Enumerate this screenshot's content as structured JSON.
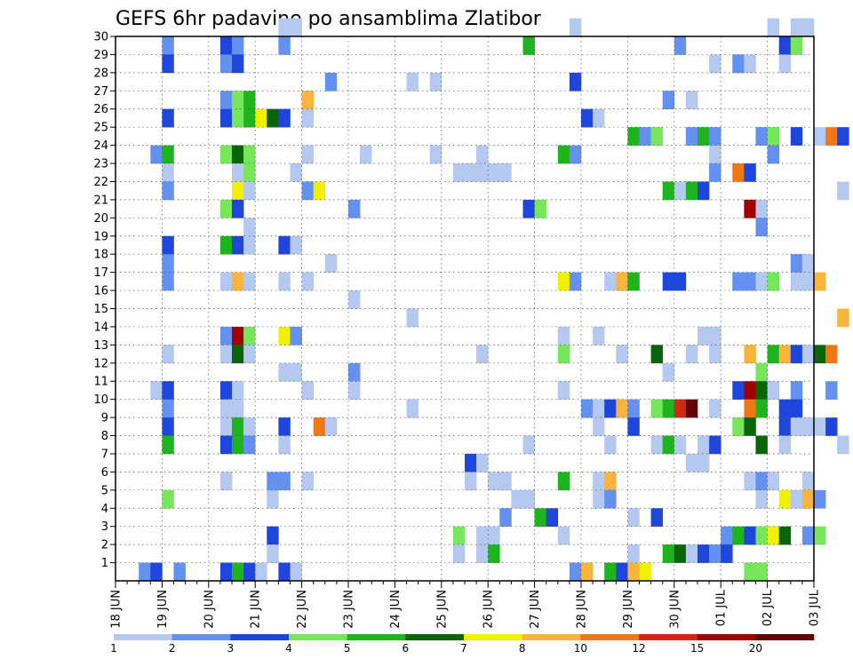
{
  "chart_data": {
    "type": "heatmap",
    "title": "GEFS 6hr padavine po ansamblima Zlatibor",
    "xlabel": "",
    "ylabel": "",
    "x_labels": [
      "18 JUN",
      "19 JUN",
      "20 JUN",
      "21 JUN",
      "22 JUN",
      "23 JUN",
      "24 JUN",
      "25 JUN",
      "26 JUN",
      "27 JUN",
      "28 JUN",
      "29 JUN",
      "30 JUN",
      "01 JUL",
      "02 JUL",
      "03 JUL"
    ],
    "y_labels": [
      "1",
      "2",
      "3",
      "4",
      "5",
      "6",
      "7",
      "8",
      "9",
      "10",
      "11",
      "12",
      "13",
      "14",
      "15",
      "16",
      "17",
      "18",
      "19",
      "20",
      "21",
      "22",
      "23",
      "24",
      "25",
      "26",
      "27",
      "28",
      "29",
      "30"
    ],
    "y_range": [
      0,
      30
    ],
    "steps_per_day": 4,
    "grid": true,
    "legend": {
      "position": "bottom",
      "labels": [
        "1",
        "2",
        "3",
        "4",
        "5",
        "6",
        "7",
        "8",
        "10",
        "12",
        "15",
        "20"
      ],
      "colors": [
        "#b4c8f0",
        "#6490f0",
        "#1e46dc",
        "#78e65a",
        "#1eb41e",
        "#0a640a",
        "#f0f000",
        "#fab43c",
        "#f07814",
        "#d22814",
        "#a00000",
        "#640000"
      ]
    },
    "cells": [
      [
        30,
        14,
        1
      ],
      [
        30,
        15,
        1
      ],
      [
        30,
        39,
        1
      ],
      [
        30,
        56,
        1
      ],
      [
        30,
        58,
        1
      ],
      [
        30,
        59,
        1
      ],
      [
        29,
        4,
        2
      ],
      [
        29,
        9,
        3
      ],
      [
        29,
        10,
        2
      ],
      [
        29,
        14,
        2
      ],
      [
        29,
        35,
        5
      ],
      [
        29,
        48,
        2
      ],
      [
        29,
        57,
        3
      ],
      [
        29,
        58,
        4
      ],
      [
        28,
        4,
        3
      ],
      [
        28,
        9,
        2
      ],
      [
        28,
        10,
        3
      ],
      [
        28,
        51,
        1
      ],
      [
        28,
        53,
        2
      ],
      [
        28,
        54,
        1
      ],
      [
        28,
        57,
        1
      ],
      [
        27,
        18,
        2
      ],
      [
        27,
        25,
        1
      ],
      [
        27,
        27,
        1
      ],
      [
        27,
        39,
        3
      ],
      [
        26,
        9,
        2
      ],
      [
        26,
        10,
        4
      ],
      [
        26,
        11,
        5
      ],
      [
        26,
        16,
        9
      ],
      [
        26,
        47,
        2
      ],
      [
        26,
        49,
        1
      ],
      [
        25,
        4,
        3
      ],
      [
        25,
        9,
        3
      ],
      [
        25,
        10,
        4
      ],
      [
        25,
        11,
        5
      ],
      [
        25,
        12,
        7
      ],
      [
        25,
        13,
        6
      ],
      [
        25,
        14,
        3
      ],
      [
        25,
        16,
        1
      ],
      [
        25,
        40,
        3
      ],
      [
        25,
        41,
        1
      ],
      [
        24,
        44,
        5
      ],
      [
        24,
        45,
        2
      ],
      [
        24,
        46,
        4
      ],
      [
        24,
        49,
        2
      ],
      [
        24,
        50,
        5
      ],
      [
        24,
        51,
        2
      ],
      [
        24,
        55,
        2
      ],
      [
        24,
        56,
        4
      ],
      [
        24,
        58,
        3
      ],
      [
        24,
        60,
        1
      ],
      [
        24,
        61,
        10
      ],
      [
        24,
        62,
        3
      ],
      [
        23,
        3,
        2
      ],
      [
        23,
        4,
        5
      ],
      [
        23,
        9,
        4
      ],
      [
        23,
        10,
        6
      ],
      [
        23,
        11,
        4
      ],
      [
        23,
        16,
        1
      ],
      [
        23,
        21,
        1
      ],
      [
        23,
        27,
        1
      ],
      [
        23,
        31,
        1
      ],
      [
        23,
        38,
        5
      ],
      [
        23,
        39,
        2
      ],
      [
        23,
        51,
        1
      ],
      [
        23,
        56,
        2
      ],
      [
        22,
        4,
        1
      ],
      [
        22,
        10,
        1
      ],
      [
        22,
        11,
        4
      ],
      [
        22,
        15,
        1
      ],
      [
        22,
        29,
        1
      ],
      [
        22,
        30,
        1
      ],
      [
        22,
        31,
        1
      ],
      [
        22,
        32,
        1
      ],
      [
        22,
        33,
        1
      ],
      [
        22,
        51,
        2
      ],
      [
        22,
        53,
        10
      ],
      [
        22,
        54,
        3
      ],
      [
        21,
        4,
        2
      ],
      [
        21,
        10,
        7
      ],
      [
        21,
        11,
        1
      ],
      [
        21,
        16,
        2
      ],
      [
        21,
        17,
        7
      ],
      [
        21,
        47,
        5
      ],
      [
        21,
        48,
        1
      ],
      [
        21,
        49,
        5
      ],
      [
        21,
        50,
        3
      ],
      [
        21,
        62,
        1
      ],
      [
        20,
        9,
        4
      ],
      [
        20,
        10,
        3
      ],
      [
        20,
        20,
        2
      ],
      [
        20,
        35,
        3
      ],
      [
        20,
        36,
        4
      ],
      [
        20,
        54,
        15
      ],
      [
        20,
        55,
        1
      ],
      [
        19,
        11,
        1
      ],
      [
        19,
        55,
        2
      ],
      [
        18,
        4,
        3
      ],
      [
        18,
        9,
        5
      ],
      [
        18,
        10,
        3
      ],
      [
        18,
        11,
        1
      ],
      [
        18,
        14,
        3
      ],
      [
        18,
        15,
        1
      ],
      [
        17,
        4,
        2
      ],
      [
        17,
        18,
        1
      ],
      [
        17,
        58,
        2
      ],
      [
        17,
        59,
        1
      ],
      [
        16,
        4,
        2
      ],
      [
        16,
        9,
        1
      ],
      [
        16,
        10,
        9
      ],
      [
        16,
        11,
        1
      ],
      [
        16,
        14,
        1
      ],
      [
        16,
        16,
        1
      ],
      [
        16,
        38,
        7
      ],
      [
        16,
        39,
        2
      ],
      [
        16,
        42,
        1
      ],
      [
        16,
        43,
        9
      ],
      [
        16,
        44,
        5
      ],
      [
        16,
        47,
        3
      ],
      [
        16,
        48,
        3
      ],
      [
        16,
        53,
        2
      ],
      [
        16,
        54,
        2
      ],
      [
        16,
        55,
        1
      ],
      [
        16,
        56,
        4
      ],
      [
        16,
        58,
        1
      ],
      [
        16,
        59,
        1
      ],
      [
        16,
        60,
        9
      ],
      [
        15,
        20,
        1
      ],
      [
        14,
        25,
        1
      ],
      [
        14,
        62,
        9
      ],
      [
        13,
        9,
        2
      ],
      [
        13,
        10,
        15
      ],
      [
        13,
        11,
        4
      ],
      [
        13,
        14,
        7
      ],
      [
        13,
        15,
        2
      ],
      [
        13,
        38,
        1
      ],
      [
        13,
        41,
        1
      ],
      [
        13,
        50,
        1
      ],
      [
        13,
        51,
        1
      ],
      [
        12,
        4,
        1
      ],
      [
        12,
        9,
        1
      ],
      [
        12,
        10,
        6
      ],
      [
        12,
        11,
        1
      ],
      [
        12,
        31,
        1
      ],
      [
        12,
        38,
        4
      ],
      [
        12,
        43,
        1
      ],
      [
        12,
        46,
        6
      ],
      [
        12,
        49,
        1
      ],
      [
        12,
        51,
        1
      ],
      [
        12,
        54,
        9
      ],
      [
        12,
        56,
        5
      ],
      [
        12,
        57,
        9
      ],
      [
        12,
        58,
        3
      ],
      [
        12,
        59,
        1
      ],
      [
        12,
        60,
        6
      ],
      [
        12,
        61,
        10
      ],
      [
        11,
        14,
        1
      ],
      [
        11,
        15,
        1
      ],
      [
        11,
        20,
        2
      ],
      [
        11,
        47,
        1
      ],
      [
        11,
        55,
        4
      ],
      [
        10,
        3,
        1
      ],
      [
        10,
        4,
        3
      ],
      [
        10,
        9,
        3
      ],
      [
        10,
        10,
        1
      ],
      [
        10,
        16,
        1
      ],
      [
        10,
        20,
        1
      ],
      [
        10,
        38,
        1
      ],
      [
        10,
        53,
        3
      ],
      [
        10,
        54,
        15
      ],
      [
        10,
        55,
        6
      ],
      [
        10,
        56,
        1
      ],
      [
        10,
        58,
        2
      ],
      [
        10,
        61,
        2
      ],
      [
        9,
        4,
        2
      ],
      [
        9,
        9,
        1
      ],
      [
        9,
        10,
        1
      ],
      [
        9,
        25,
        1
      ],
      [
        9,
        40,
        2
      ],
      [
        9,
        41,
        1
      ],
      [
        9,
        42,
        3
      ],
      [
        9,
        43,
        9
      ],
      [
        9,
        44,
        2
      ],
      [
        9,
        46,
        4
      ],
      [
        9,
        47,
        5
      ],
      [
        9,
        48,
        12
      ],
      [
        9,
        49,
        20
      ],
      [
        9,
        51,
        1
      ],
      [
        9,
        54,
        10
      ],
      [
        9,
        55,
        5
      ],
      [
        9,
        57,
        3
      ],
      [
        9,
        58,
        3
      ],
      [
        8,
        4,
        3
      ],
      [
        8,
        9,
        1
      ],
      [
        8,
        10,
        5
      ],
      [
        8,
        11,
        1
      ],
      [
        8,
        14,
        3
      ],
      [
        8,
        17,
        10
      ],
      [
        8,
        18,
        1
      ],
      [
        8,
        41,
        1
      ],
      [
        8,
        44,
        3
      ],
      [
        8,
        53,
        4
      ],
      [
        8,
        54,
        6
      ],
      [
        8,
        57,
        3
      ],
      [
        8,
        58,
        1
      ],
      [
        8,
        59,
        1
      ],
      [
        8,
        60,
        1
      ],
      [
        8,
        61,
        3
      ],
      [
        7,
        4,
        5
      ],
      [
        7,
        9,
        3
      ],
      [
        7,
        10,
        5
      ],
      [
        7,
        11,
        2
      ],
      [
        7,
        14,
        1
      ],
      [
        7,
        35,
        1
      ],
      [
        7,
        42,
        1
      ],
      [
        7,
        46,
        1
      ],
      [
        7,
        47,
        5
      ],
      [
        7,
        48,
        1
      ],
      [
        7,
        50,
        1
      ],
      [
        7,
        51,
        3
      ],
      [
        7,
        55,
        6
      ],
      [
        7,
        57,
        1
      ],
      [
        7,
        62,
        1
      ],
      [
        6,
        30,
        3
      ],
      [
        6,
        31,
        1
      ],
      [
        6,
        49,
        1
      ],
      [
        6,
        50,
        1
      ],
      [
        5,
        9,
        1
      ],
      [
        5,
        13,
        2
      ],
      [
        5,
        14,
        2
      ],
      [
        5,
        16,
        1
      ],
      [
        5,
        30,
        1
      ],
      [
        5,
        32,
        1
      ],
      [
        5,
        33,
        1
      ],
      [
        5,
        38,
        5
      ],
      [
        5,
        41,
        1
      ],
      [
        5,
        42,
        9
      ],
      [
        5,
        54,
        1
      ],
      [
        5,
        55,
        2
      ],
      [
        5,
        56,
        1
      ],
      [
        5,
        59,
        1
      ],
      [
        4,
        4,
        4
      ],
      [
        4,
        13,
        1
      ],
      [
        4,
        34,
        1
      ],
      [
        4,
        35,
        1
      ],
      [
        4,
        41,
        1
      ],
      [
        4,
        42,
        2
      ],
      [
        4,
        55,
        1
      ],
      [
        4,
        57,
        7
      ],
      [
        4,
        58,
        1
      ],
      [
        4,
        59,
        9
      ],
      [
        4,
        60,
        2
      ],
      [
        3,
        33,
        2
      ],
      [
        3,
        36,
        5
      ],
      [
        3,
        37,
        3
      ],
      [
        3,
        44,
        1
      ],
      [
        3,
        46,
        3
      ],
      [
        2,
        13,
        3
      ],
      [
        2,
        29,
        4
      ],
      [
        2,
        31,
        1
      ],
      [
        2,
        32,
        1
      ],
      [
        2,
        38,
        1
      ],
      [
        2,
        52,
        2
      ],
      [
        2,
        53,
        5
      ],
      [
        2,
        54,
        3
      ],
      [
        2,
        55,
        4
      ],
      [
        2,
        56,
        7
      ],
      [
        2,
        57,
        6
      ],
      [
        2,
        59,
        2
      ],
      [
        2,
        60,
        4
      ],
      [
        1,
        13,
        1
      ],
      [
        1,
        29,
        1
      ],
      [
        1,
        31,
        1
      ],
      [
        1,
        32,
        5
      ],
      [
        1,
        44,
        1
      ],
      [
        1,
        47,
        5
      ],
      [
        1,
        48,
        6
      ],
      [
        1,
        49,
        1
      ],
      [
        1,
        50,
        3
      ],
      [
        1,
        51,
        2
      ],
      [
        1,
        52,
        3
      ],
      [
        0,
        2,
        2
      ],
      [
        0,
        3,
        3
      ],
      [
        0,
        5,
        2
      ],
      [
        0,
        9,
        3
      ],
      [
        0,
        10,
        5
      ],
      [
        0,
        11,
        3
      ],
      [
        0,
        12,
        1
      ],
      [
        0,
        14,
        3
      ],
      [
        0,
        15,
        1
      ],
      [
        0,
        39,
        2
      ],
      [
        0,
        40,
        9
      ],
      [
        0,
        42,
        5
      ],
      [
        0,
        43,
        3
      ],
      [
        0,
        44,
        9
      ],
      [
        0,
        45,
        7
      ],
      [
        0,
        54,
        4
      ],
      [
        0,
        55,
        4
      ]
    ]
  }
}
